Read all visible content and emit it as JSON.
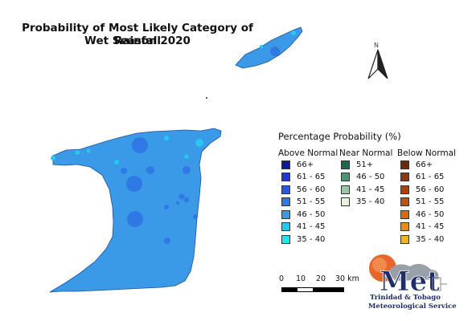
{
  "title_line1": "Probability of Most Likely Category of Rainfall",
  "title_line2": "Wet Season 2020",
  "legend": {
    "title": "Percentage Probability  (%)",
    "above_normal": {
      "header": "Above Normal",
      "items": [
        {
          "label": "66+",
          "color": "#0a1a9a"
        },
        {
          "label": "61 - 65",
          "color": "#1e38d0"
        },
        {
          "label": "56 - 60",
          "color": "#2a58e0"
        },
        {
          "label": "51 - 55",
          "color": "#2f78e6"
        },
        {
          "label": "46 - 50",
          "color": "#3a9ae8"
        },
        {
          "label": "41 - 45",
          "color": "#26c8f0"
        },
        {
          "label": "35 - 40",
          "color": "#22e6ee"
        }
      ]
    },
    "near_normal": {
      "header": "Near Normal",
      "items": [
        {
          "label": "51+",
          "color": "#1b6b4a"
        },
        {
          "label": "46 - 50",
          "color": "#4c9472"
        },
        {
          "label": "41 - 45",
          "color": "#9cc7a4"
        },
        {
          "label": "35 - 40",
          "color": "#e6f5d8"
        }
      ]
    },
    "below_normal": {
      "header": "Below Normal",
      "items": [
        {
          "label": "66+",
          "color": "#6a2a0c"
        },
        {
          "label": "61 - 65",
          "color": "#8a3a10"
        },
        {
          "label": "56 - 60",
          "color": "#a8420e"
        },
        {
          "label": "51 - 55",
          "color": "#c2520c"
        },
        {
          "label": "46 - 50",
          "color": "#da6a10"
        },
        {
          "label": "41 - 45",
          "color": "#ea8a18"
        },
        {
          "label": "35 - 40",
          "color": "#f6b21c"
        }
      ]
    }
  },
  "scale": {
    "ticks": [
      "0",
      "10",
      "20",
      "30 km"
    ]
  },
  "north_label": "N",
  "logo": {
    "text": "Met",
    "line1": "Trinidad & Tobago",
    "line2": "Meteorological Service"
  },
  "map_colors": {
    "land": "#3a9ae8",
    "cell_41_45": "#26c8f0",
    "cell_51_55": "#2f78e6",
    "outline": "#1f4f9a"
  }
}
